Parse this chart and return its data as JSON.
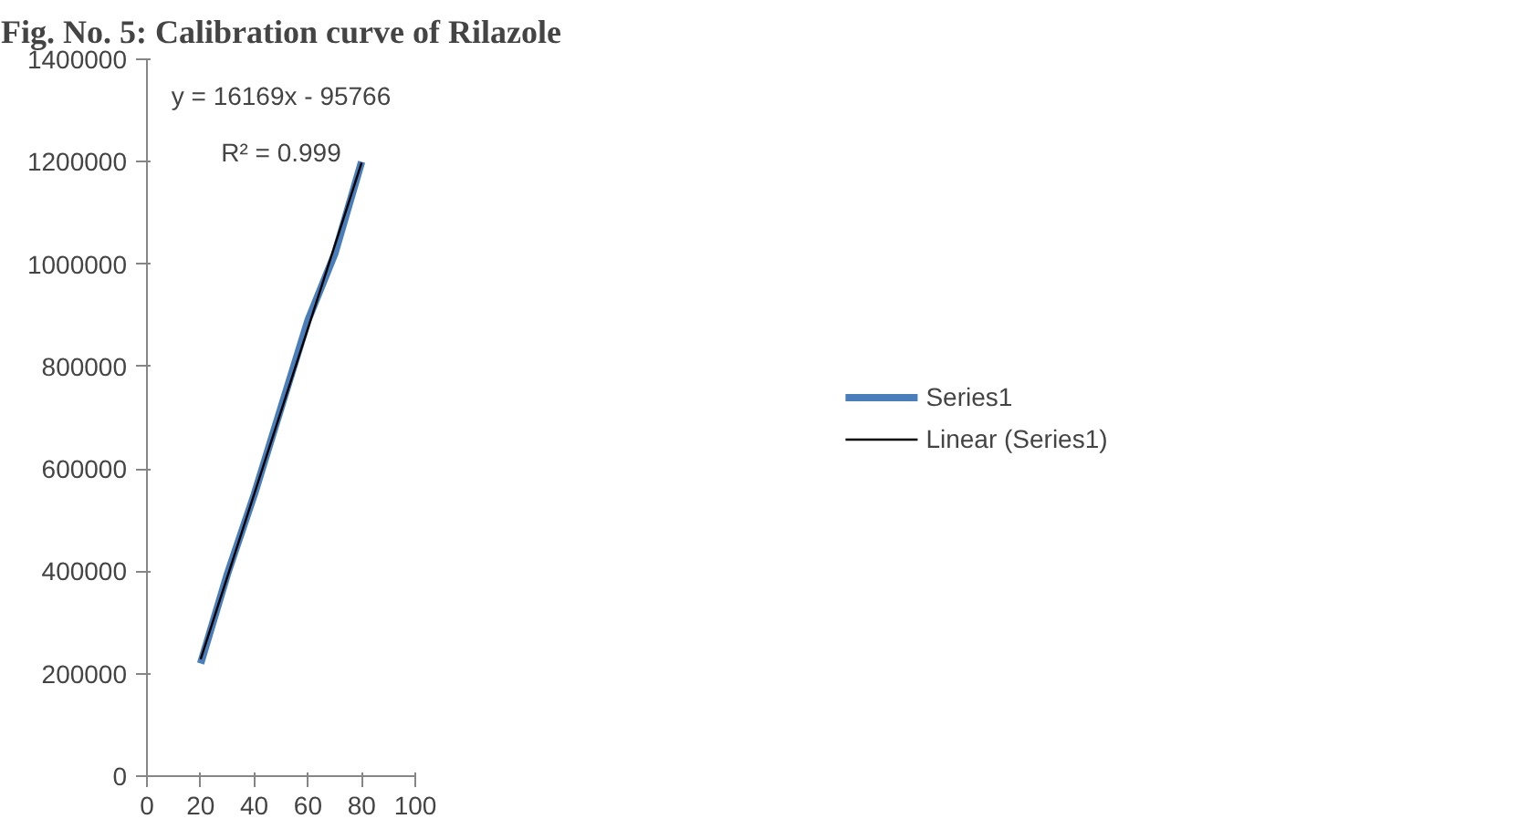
{
  "chart_data": {
    "type": "line",
    "title": "Fig. No. 5: Calibration curve of Rilazole",
    "x": [
      20,
      30,
      40,
      50,
      60,
      70,
      80
    ],
    "series": [
      {
        "name": "Series1",
        "color": "#4a7ebb",
        "values": [
          220000,
          395000,
          550000,
          720000,
          890000,
          1020000,
          1200000
        ]
      },
      {
        "name": "Linear (Series1)",
        "color": "#000000",
        "x": [
          20,
          80
        ],
        "values": [
          228000,
          1198000
        ]
      }
    ],
    "xlim": [
      0,
      100
    ],
    "xticks": [
      0,
      20,
      40,
      60,
      80,
      100
    ],
    "ylim": [
      0,
      1400000
    ],
    "yticks": [
      0,
      200000,
      400000,
      600000,
      800000,
      1000000,
      1200000,
      1400000
    ],
    "annotations": [
      "y = 16169x - 95766",
      "R² = 0.999"
    ],
    "grid": false,
    "legend": "right",
    "marker": "none",
    "line_style": "solid"
  }
}
